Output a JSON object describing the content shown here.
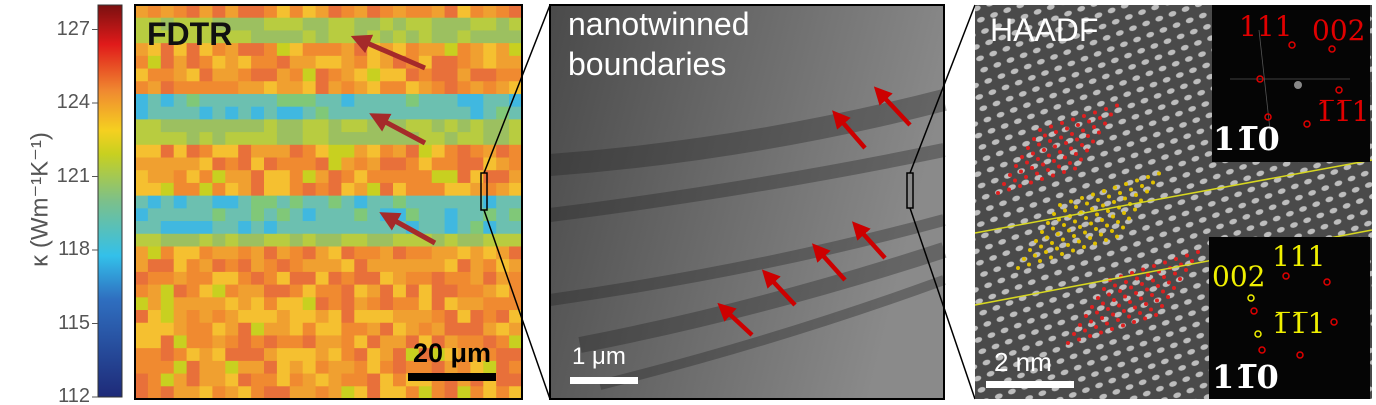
{
  "colorbar": {
    "label": "κ (Wm⁻¹K⁻¹)",
    "ticks": [
      "127",
      "124",
      "121",
      "118",
      "115",
      "112"
    ],
    "range": [
      112,
      128
    ],
    "colormap": "jet"
  },
  "panel_fdtr": {
    "title": "FDTR",
    "scalebar": "20 μm",
    "arrow_color": "#a52a2a"
  },
  "panel_sem": {
    "title_line1": "nanotwinned",
    "title_line2": "boundaries",
    "scalebar": "1 μm",
    "arrow_color": "#cc0000"
  },
  "panel_haadf": {
    "title": "HAADF",
    "scalebar": "2 nm",
    "boundary_color": "#d8d820",
    "fft_top": {
      "label_111": "111",
      "label_002": "002",
      "label_m1m11": "1̅1̅1",
      "zone_axis": "11̅0",
      "color": "#e00000"
    },
    "fft_bottom": {
      "label_111": "111",
      "label_002": "002",
      "label_m1m11": "1̅1̅1",
      "zone_axis": "11̅0",
      "color": "#f0f000"
    }
  }
}
